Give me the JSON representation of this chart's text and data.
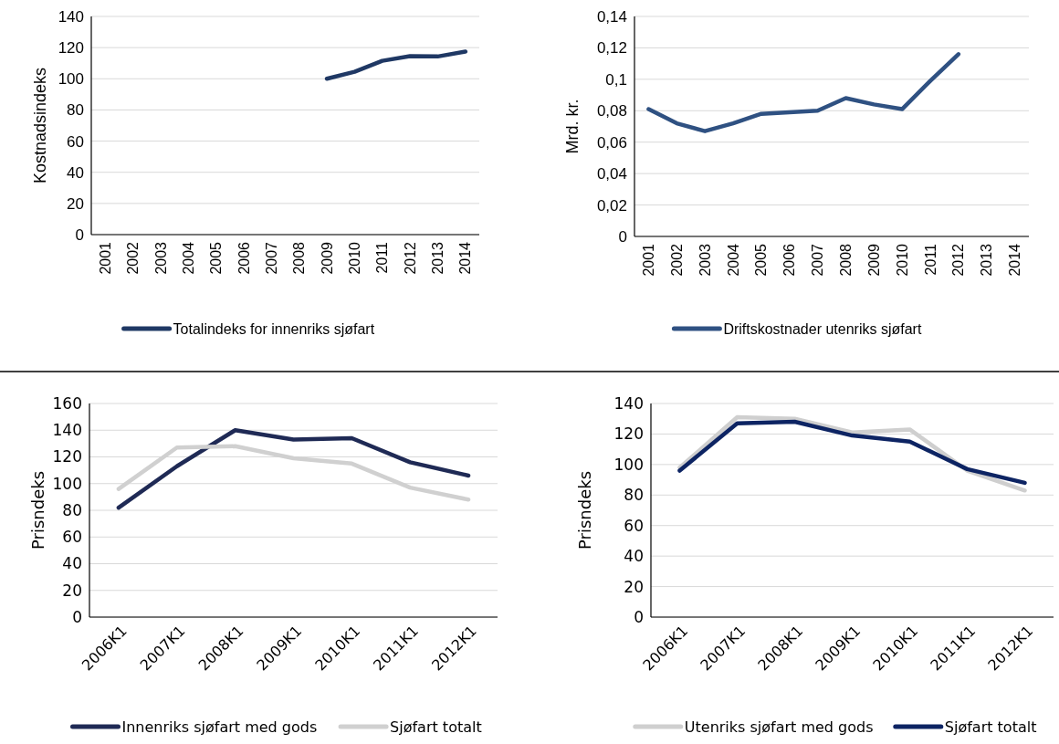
{
  "chart_data": [
    {
      "type": "line",
      "ylabel": "Kostnadsindeks",
      "categories": [
        "2001",
        "2002",
        "2003",
        "2004",
        "2005",
        "2006",
        "2007",
        "2008",
        "2009",
        "2010",
        "2011",
        "2012",
        "2013",
        "2014"
      ],
      "series": [
        {
          "name": "Totalindeks for innenriks sjøfart",
          "color": "#1f3864",
          "values": [
            null,
            null,
            null,
            null,
            null,
            null,
            null,
            null,
            100,
            104.5,
            111.5,
            114.5,
            114.3,
            117.5
          ]
        }
      ],
      "ylim": [
        0,
        140
      ],
      "yticks": [
        0,
        20,
        40,
        60,
        80,
        100,
        120,
        140
      ],
      "grid": "y",
      "legend": "bottom"
    },
    {
      "type": "line",
      "ylabel": "Mrd. kr.",
      "categories": [
        "2001",
        "2002",
        "2003",
        "2004",
        "2005",
        "2006",
        "2007",
        "2008",
        "2009",
        "2010",
        "2011",
        "2012",
        "2013",
        "2014"
      ],
      "series": [
        {
          "name": "Driftskostnader utenriks sjøfart",
          "color": "#2f5182",
          "values": [
            0.081,
            0.072,
            0.067,
            0.072,
            0.078,
            0.079,
            0.08,
            0.088,
            0.084,
            0.081,
            0.099,
            0.116,
            null,
            null
          ]
        }
      ],
      "ylim": [
        0,
        0.14
      ],
      "yticks": [
        0,
        {
          "value": 0.02,
          "label": "0,02"
        },
        {
          "value": 0.04,
          "label": "0,04"
        },
        {
          "value": 0.06,
          "label": "0,06"
        },
        {
          "value": 0.08,
          "label": "0,08"
        },
        {
          "value": 0.1,
          "label": "0,1"
        },
        {
          "value": 0.12,
          "label": "0,12"
        },
        {
          "value": 0.14,
          "label": "0,14"
        }
      ],
      "grid": "y",
      "legend": "bottom"
    },
    {
      "type": "line",
      "ylabel": "Prisndeks",
      "categories": [
        "2006K1",
        "2007K1",
        "2008K1",
        "2009K1",
        "2010K1",
        "2011K1",
        "2012K1"
      ],
      "series": [
        {
          "name": "Innenriks sjøfart med gods",
          "color": "#1f2a55",
          "values": [
            82,
            113,
            140,
            133,
            134,
            116,
            106
          ]
        },
        {
          "name": "Sjøfart totalt",
          "color": "#d0d0d0",
          "values": [
            96,
            127,
            128,
            119,
            115,
            97,
            88
          ]
        }
      ],
      "ylim": [
        0,
        160
      ],
      "yticks": [
        0,
        20,
        40,
        60,
        80,
        100,
        120,
        140,
        160
      ],
      "grid": "y",
      "legend": "bottom"
    },
    {
      "type": "line",
      "ylabel": "Prisndeks",
      "categories": [
        "2006K1",
        "2007K1",
        "2008K1",
        "2009K1",
        "2010K1",
        "2011K1",
        "2012K1"
      ],
      "series": [
        {
          "name": "Utenriks sjøfart med gods",
          "color": "#cfcfcf",
          "values": [
            98,
            131,
            130,
            121,
            123,
            96,
            83
          ]
        },
        {
          "name": "Sjøfart totalt",
          "color": "#0d2463",
          "values": [
            96,
            127,
            128,
            119,
            115,
            97,
            88
          ]
        }
      ],
      "ylim": [
        0,
        140
      ],
      "yticks": [
        0,
        20,
        40,
        60,
        80,
        100,
        120,
        140
      ],
      "grid": "y",
      "legend": "bottom"
    }
  ]
}
